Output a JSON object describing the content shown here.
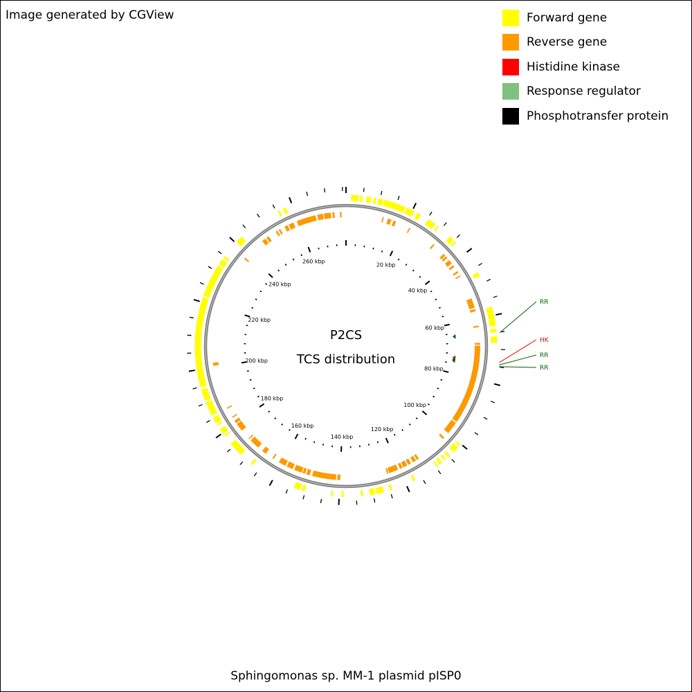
{
  "credit": "Image generated by CGView",
  "legend": [
    {
      "label": "Forward gene",
      "color": "#ffff00"
    },
    {
      "label": "Reverse gene",
      "color": "#ff9900"
    },
    {
      "label": "Histidine kinase",
      "color": "#ff0000"
    },
    {
      "label": "Response regulator",
      "color": "#80c080"
    },
    {
      "label": "Phosphotransfer protein",
      "color": "#000000"
    }
  ],
  "footer": "Sphingomonas sp. MM-1 plasmid pISP0",
  "chart_data": {
    "type": "circular-genome-map",
    "center_lines": [
      "P2CS",
      "TCS distribution"
    ],
    "genome_length_kbp": 276,
    "ruler_labels": [
      {
        "kbp": 20,
        "label": "20 kbp"
      },
      {
        "kbp": 40,
        "label": "40 kbp"
      },
      {
        "kbp": 60,
        "label": "60 kbp"
      },
      {
        "kbp": 80,
        "label": "80 kbp"
      },
      {
        "kbp": 100,
        "label": "100 kbp"
      },
      {
        "kbp": 120,
        "label": "120 kbp"
      },
      {
        "kbp": 140,
        "label": "140 kbp"
      },
      {
        "kbp": 160,
        "label": "160 kbp"
      },
      {
        "kbp": 180,
        "label": "180 kbp"
      },
      {
        "kbp": 200,
        "label": "200 kbp"
      },
      {
        "kbp": 220,
        "label": "220 kbp"
      },
      {
        "kbp": 240,
        "label": "240 kbp"
      },
      {
        "kbp": 260,
        "label": "260 kbp"
      }
    ],
    "forward_genes_kbp": [
      [
        1.5,
        3.8
      ],
      [
        4.2,
        4.9
      ],
      [
        6.0,
        7.4
      ],
      [
        8.2,
        8.9
      ],
      [
        9.5,
        11.0
      ],
      [
        11.3,
        17.8
      ],
      [
        18.2,
        20.6
      ],
      [
        21.6,
        22.8
      ],
      [
        25.3,
        27.8
      ],
      [
        28.6,
        29.1
      ],
      [
        33.4,
        34.9
      ],
      [
        35.4,
        35.9
      ],
      [
        46.6,
        47.8
      ],
      [
        57.4,
        63.1
      ],
      [
        63.9,
        65.0
      ],
      [
        66.2,
        68.1
      ],
      [
        100.2,
        100.7
      ],
      [
        101.3,
        103.2
      ],
      [
        104.6,
        105.4
      ],
      [
        106.2,
        106.8
      ],
      [
        107.7,
        108.6
      ],
      [
        109.2,
        109.7
      ],
      [
        117.0,
        117.7
      ],
      [
        124.3,
        125.0
      ],
      [
        126.8,
        129.1
      ],
      [
        129.5,
        131.0
      ],
      [
        133.0,
        133.6
      ],
      [
        138.7,
        139.3
      ],
      [
        141.9,
        142.4
      ],
      [
        150.2,
        151.1
      ],
      [
        151.6,
        153.5
      ],
      [
        167.2,
        167.9
      ],
      [
        171.7,
        176.1
      ],
      [
        178.8,
        179.3
      ],
      [
        179.7,
        181.4
      ],
      [
        182.6,
        183.0
      ],
      [
        183.4,
        185.3
      ],
      [
        186.0,
        190.3
      ],
      [
        190.7,
        194.2
      ],
      [
        194.8,
        221.6
      ],
      [
        221.9,
        231.6
      ],
      [
        232.0,
        233.8
      ],
      [
        234.3,
        235.0
      ],
      [
        240.3,
        242.5
      ],
      [
        255.4,
        256.0
      ],
      [
        257.1,
        258.0
      ]
    ],
    "reverse_genes_kbp": [
      [
        12.2,
        12.6
      ],
      [
        14.0,
        15.2
      ],
      [
        15.9,
        16.8
      ],
      [
        21.6,
        22.0
      ],
      [
        31.1,
        31.6
      ],
      [
        35.8,
        36.6
      ],
      [
        36.9,
        37.6
      ],
      [
        38.5,
        39.9
      ],
      [
        40.6,
        41.3
      ],
      [
        43.0,
        43.6
      ],
      [
        44.6,
        45.0
      ],
      [
        53.1,
        56.3
      ],
      [
        56.7,
        57.5
      ],
      [
        62.3,
        62.8
      ],
      [
        68.0,
        68.6
      ],
      [
        68.9,
        95.4
      ],
      [
        95.8,
        100.0
      ],
      [
        101.9,
        102.6
      ],
      [
        112.8,
        113.5
      ],
      [
        113.9,
        115.0
      ],
      [
        115.8,
        116.8
      ],
      [
        117.2,
        118.6
      ],
      [
        118.9,
        119.8
      ],
      [
        120.5,
        123.6
      ],
      [
        123.8,
        124.3
      ],
      [
        139.9,
        140.9
      ],
      [
        141.3,
        149.2
      ],
      [
        150.0,
        151.2
      ],
      [
        151.6,
        152.5
      ],
      [
        152.8,
        155.4
      ],
      [
        156.0,
        158.1
      ],
      [
        158.6,
        161.0
      ],
      [
        163.0,
        163.5
      ],
      [
        166.1,
        167.6
      ],
      [
        169.3,
        172.7
      ],
      [
        173.3,
        173.7
      ],
      [
        177.0,
        179.8
      ],
      [
        180.1,
        181.1
      ],
      [
        182.2,
        182.6
      ],
      [
        185.6,
        186.0
      ],
      [
        200.5,
        201.5
      ],
      [
        238.1,
        238.6
      ],
      [
        246.4,
        247.7
      ],
      [
        248.1,
        249.0
      ],
      [
        251.8,
        252.4
      ],
      [
        252.9,
        253.5
      ],
      [
        255.1,
        256.2
      ],
      [
        256.6,
        258.3
      ],
      [
        259.5,
        265.9
      ],
      [
        266.5,
        268.4
      ],
      [
        268.7,
        271.0
      ],
      [
        271.5,
        272.2
      ],
      [
        274.0,
        274.5
      ]
    ],
    "tcs_features": [
      {
        "kbp": 65.2,
        "class": "RR",
        "label": "RR",
        "color": "#006400"
      },
      {
        "kbp": 73.7,
        "class": "HK",
        "label": "HK",
        "color": "#ff0000"
      },
      {
        "kbp": 74.4,
        "class": "RR",
        "label": "RR",
        "color": "#006400"
      },
      {
        "kbp": 74.9,
        "class": "RR",
        "label": "RR",
        "color": "#006400"
      }
    ]
  }
}
